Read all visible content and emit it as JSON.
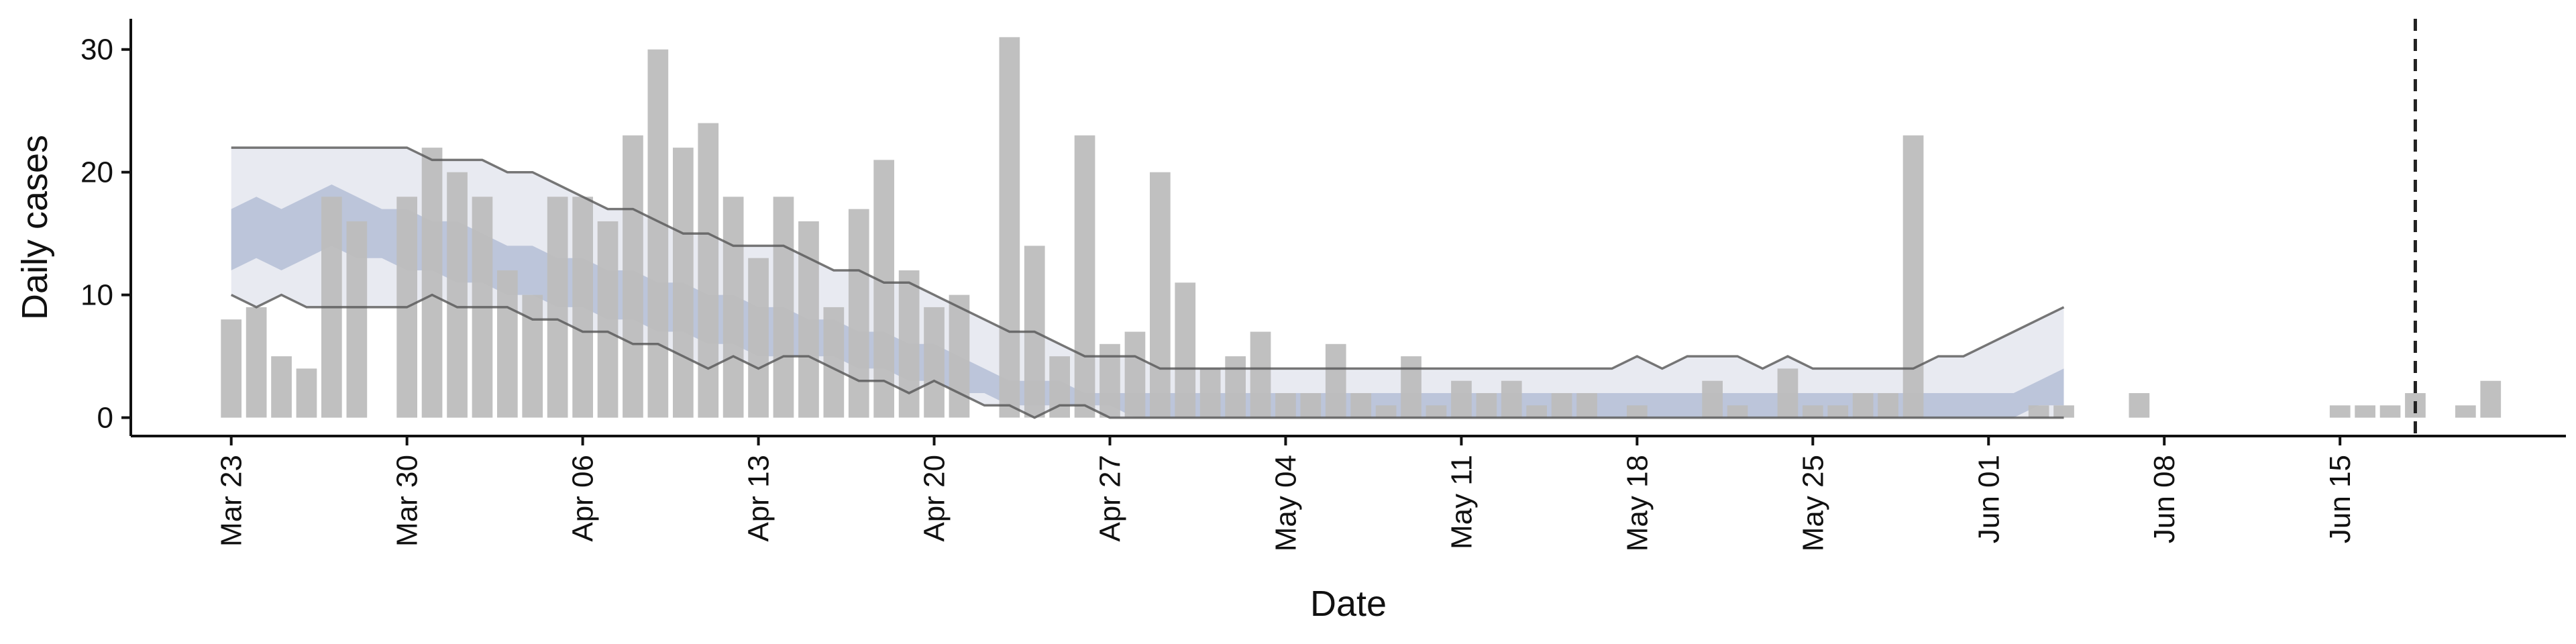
{
  "chart_data": {
    "type": "bar",
    "xlabel": "Date",
    "ylabel": "Daily cases",
    "ylim": [
      -1.5,
      32.5
    ],
    "xlim": [
      "2020-03-19",
      "2020-06-24"
    ],
    "yticks": [
      0,
      10,
      20,
      30
    ],
    "xticks": [
      {
        "date": "2020-03-23",
        "label": "Mar 23"
      },
      {
        "date": "2020-03-30",
        "label": "Mar 30"
      },
      {
        "date": "2020-04-06",
        "label": "Apr 06"
      },
      {
        "date": "2020-04-13",
        "label": "Apr 13"
      },
      {
        "date": "2020-04-20",
        "label": "Apr 20"
      },
      {
        "date": "2020-04-27",
        "label": "Apr 27"
      },
      {
        "date": "2020-05-04",
        "label": "May 04"
      },
      {
        "date": "2020-05-11",
        "label": "May 11"
      },
      {
        "date": "2020-05-18",
        "label": "May 18"
      },
      {
        "date": "2020-05-25",
        "label": "May 25"
      },
      {
        "date": "2020-06-01",
        "label": "Jun 01"
      },
      {
        "date": "2020-06-08",
        "label": "Jun 08"
      },
      {
        "date": "2020-06-15",
        "label": "Jun 15"
      }
    ],
    "bars": {
      "start_date": "2020-03-23",
      "values": [
        8,
        9,
        5,
        4,
        18,
        16,
        0,
        18,
        22,
        20,
        18,
        12,
        10,
        18,
        18,
        16,
        23,
        30,
        22,
        24,
        18,
        13,
        18,
        16,
        9,
        17,
        21,
        12,
        9,
        10,
        0,
        31,
        14,
        5,
        23,
        6,
        7,
        20,
        11,
        4,
        5,
        7,
        2,
        2,
        6,
        2,
        1,
        5,
        1,
        3,
        2,
        3,
        1,
        2,
        2,
        0,
        1,
        0,
        0,
        3,
        1,
        0,
        4,
        1,
        1,
        2,
        2,
        23,
        0,
        0,
        0,
        0,
        1,
        1,
        0,
        0,
        2,
        0,
        0,
        0,
        0,
        0,
        0,
        0,
        1,
        1,
        1,
        2,
        0,
        1,
        3
      ],
      "color": "#bdbdbd"
    },
    "outer_band": {
      "start_date": "2020-03-23",
      "color": "#e8eaf1",
      "upper": [
        22,
        22,
        22,
        22,
        22,
        22,
        22,
        22,
        21,
        21,
        21,
        20,
        20,
        19,
        18,
        17,
        17,
        16,
        15,
        15,
        14,
        14,
        14,
        13,
        12,
        12,
        11,
        11,
        10,
        9,
        8,
        7,
        7,
        6,
        5,
        5,
        5,
        4,
        4,
        4,
        4,
        4,
        4,
        4,
        4,
        4,
        4,
        4,
        4,
        4,
        4,
        4,
        4,
        4,
        4,
        4,
        5,
        4,
        5,
        5,
        5,
        4,
        5,
        4,
        4,
        4,
        4,
        4,
        5,
        5,
        6,
        7,
        8,
        9
      ],
      "lower": [
        10,
        9,
        10,
        9,
        9,
        9,
        9,
        9,
        10,
        9,
        9,
        9,
        8,
        8,
        7,
        7,
        6,
        6,
        5,
        4,
        5,
        4,
        5,
        5,
        4,
        3,
        3,
        2,
        3,
        2,
        1,
        1,
        0,
        1,
        1,
        0,
        0,
        0,
        0,
        0,
        0,
        0,
        0,
        0,
        0,
        0,
        0,
        0,
        0,
        0,
        0,
        0,
        0,
        0,
        0,
        0,
        0,
        0,
        0,
        0,
        0,
        0,
        0,
        0,
        0,
        0,
        0,
        0,
        0,
        0,
        0,
        0,
        0,
        0
      ]
    },
    "inner_band": {
      "start_date": "2020-03-23",
      "color": "#b4bed6",
      "upper": [
        17,
        18,
        17,
        18,
        19,
        18,
        17,
        17,
        16,
        16,
        15,
        14,
        14,
        13,
        13,
        12,
        12,
        11,
        11,
        10,
        10,
        9,
        9,
        8,
        8,
        7,
        7,
        6,
        6,
        5,
        4,
        3,
        3,
        3,
        2,
        2,
        2,
        2,
        2,
        2,
        2,
        2,
        2,
        2,
        2,
        2,
        2,
        2,
        2,
        2,
        2,
        2,
        2,
        2,
        2,
        2,
        2,
        2,
        2,
        2,
        2,
        2,
        2,
        2,
        2,
        2,
        2,
        2,
        2,
        2,
        2,
        2,
        3,
        4
      ],
      "lower": [
        12,
        13,
        12,
        13,
        14,
        13,
        13,
        12,
        12,
        11,
        11,
        10,
        10,
        9,
        9,
        8,
        8,
        7,
        7,
        6,
        6,
        5,
        5,
        5,
        5,
        4,
        4,
        3,
        3,
        2,
        2,
        1,
        1,
        1,
        1,
        1,
        0,
        0,
        0,
        0,
        0,
        0,
        0,
        0,
        0,
        0,
        0,
        0,
        0,
        0,
        0,
        0,
        0,
        0,
        0,
        0,
        0,
        0,
        0,
        0,
        0,
        0,
        0,
        0,
        0,
        0,
        0,
        0,
        0,
        0,
        0,
        0,
        1,
        1
      ]
    },
    "marker_date": "2020-06-18"
  }
}
